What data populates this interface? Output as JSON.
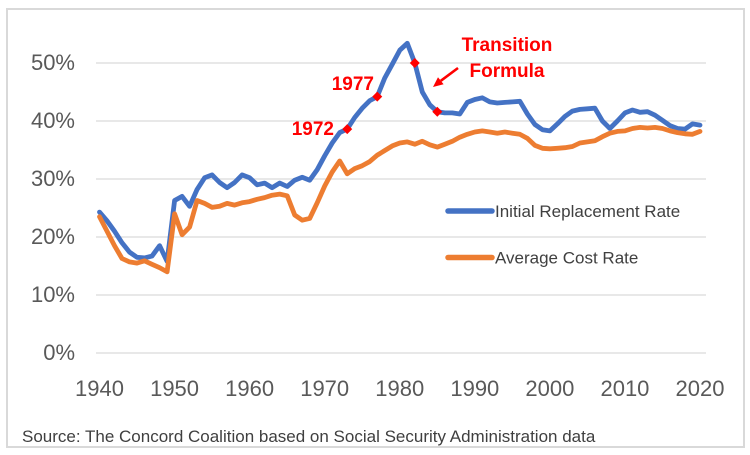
{
  "source_note": "Source: The Concord Coalition based on Social Security Administration data",
  "chart_data": {
    "type": "line",
    "title": "",
    "xlabel": "",
    "ylabel": "",
    "x_start": 1940,
    "x_end": 2020,
    "x_step": 1,
    "ylim": [
      0,
      55
    ],
    "grid": true,
    "legend_position": "inside-right",
    "grid_color": "#D9D9D9",
    "axis_text_color": "#595959",
    "annotation_color": "#FF0000",
    "legend_text_color": "#404040",
    "y_ticks": [
      {
        "value": 0,
        "label": "0%"
      },
      {
        "value": 10,
        "label": "10%"
      },
      {
        "value": 20,
        "label": "20%"
      },
      {
        "value": 30,
        "label": "30%"
      },
      {
        "value": 40,
        "label": "40%"
      },
      {
        "value": 50,
        "label": "50%"
      }
    ],
    "x_ticks": [
      {
        "value": 1940,
        "label": "1940"
      },
      {
        "value": 1950,
        "label": "1950"
      },
      {
        "value": 1960,
        "label": "1960"
      },
      {
        "value": 1970,
        "label": "1970"
      },
      {
        "value": 1980,
        "label": "1980"
      },
      {
        "value": 1990,
        "label": "1990"
      },
      {
        "value": 2000,
        "label": "2000"
      },
      {
        "value": 2010,
        "label": "2010"
      },
      {
        "value": 2020,
        "label": "2020"
      }
    ],
    "series": [
      {
        "name": "Initial Replacement Rate",
        "color": "#4472C4",
        "values": [
          24.3,
          22.8,
          21.0,
          19.0,
          17.4,
          16.5,
          16.4,
          16.7,
          18.5,
          15.8,
          26.3,
          27.0,
          25.3,
          28.2,
          30.2,
          30.7,
          29.4,
          28.5,
          29.4,
          30.7,
          30.2,
          29.0,
          29.3,
          28.5,
          29.3,
          28.7,
          29.8,
          30.3,
          29.8,
          31.6,
          34.0,
          36.2,
          38.0,
          38.6,
          40.6,
          42.2,
          43.5,
          44.2,
          47.4,
          49.8,
          52.2,
          53.4,
          50.0,
          45.0,
          42.8,
          41.6,
          41.4,
          41.4,
          41.2,
          43.2,
          43.7,
          44.0,
          43.3,
          43.1,
          43.2,
          43.3,
          43.4,
          41.2,
          39.4,
          38.5,
          38.3,
          39.5,
          40.8,
          41.7,
          42.0,
          42.1,
          42.2,
          40.0,
          38.7,
          40.0,
          41.4,
          41.9,
          41.5,
          41.6,
          41.0,
          40.1,
          39.2,
          38.7,
          38.6,
          39.5,
          39.3
        ]
      },
      {
        "name": "Average Cost Rate",
        "color": "#ED7D31",
        "values": [
          23.5,
          21.0,
          18.5,
          16.3,
          15.7,
          15.5,
          15.9,
          15.3,
          14.7,
          14.0,
          24.0,
          20.4,
          21.7,
          26.3,
          25.8,
          25.1,
          25.3,
          25.8,
          25.5,
          25.9,
          26.1,
          26.5,
          26.8,
          27.2,
          27.4,
          27.1,
          23.8,
          22.9,
          23.2,
          25.9,
          28.8,
          31.2,
          33.1,
          30.9,
          31.8,
          32.3,
          33.0,
          34.1,
          34.9,
          35.7,
          36.2,
          36.4,
          36.0,
          36.5,
          35.9,
          35.5,
          36.0,
          36.5,
          37.2,
          37.7,
          38.1,
          38.3,
          38.1,
          37.9,
          38.1,
          37.9,
          37.7,
          37.0,
          35.8,
          35.3,
          35.2,
          35.3,
          35.4,
          35.6,
          36.2,
          36.4,
          36.6,
          37.3,
          37.9,
          38.2,
          38.3,
          38.7,
          38.9,
          38.8,
          38.9,
          38.7,
          38.3,
          38.0,
          37.8,
          37.7,
          38.2
        ]
      }
    ],
    "red_markers": [
      {
        "year": 1973,
        "value": 38.6,
        "label": "1972"
      },
      {
        "year": 1977,
        "value": 44.2,
        "label": "1977"
      },
      {
        "year": 1982,
        "value": 50.0,
        "label": "Transition Formula"
      },
      {
        "year": 1985,
        "value": 41.6,
        "label": "Transition Formula"
      }
    ],
    "annotations": {
      "label_1972": "1972",
      "label_1977": "1977",
      "transition_line1": "Transition",
      "transition_line2": "Formula"
    }
  }
}
